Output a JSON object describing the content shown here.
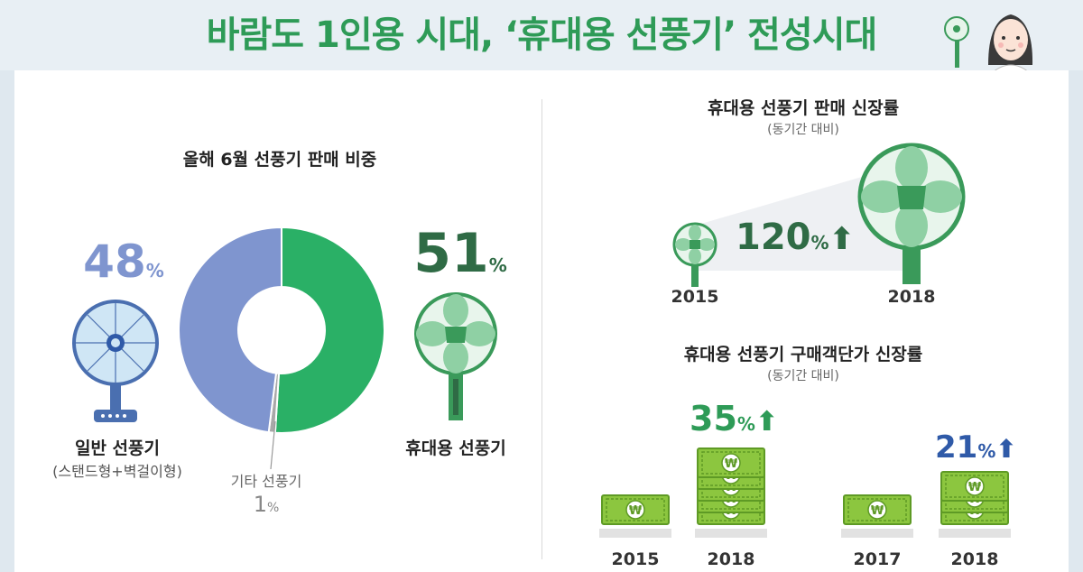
{
  "title": "바람도 1인용 시대, ‘휴대용 선풍기’ 전성시대",
  "colors": {
    "green": "#2ab066",
    "dark_green": "#2f6b45",
    "blue_gray": "#7f95cf",
    "gray": "#a8a8a8",
    "blue_pct": "#2f5aa8",
    "money_green": "#8cc63f"
  },
  "left_panel": {
    "title": "올해 6월 선풍기 판매 비중",
    "general": {
      "pct": "48",
      "unit": "%",
      "label": "일반 선풍기",
      "sublabel": "(스탠드형+벽걸이형)"
    },
    "portable": {
      "pct": "51",
      "unit": "%",
      "label": "휴대용 선풍기"
    },
    "other": {
      "label": "기타 선풍기",
      "pct": "1",
      "unit": "%"
    }
  },
  "growth_panel": {
    "title": "휴대용 선풍기 판매 신장률",
    "subtitle": "(동기간 대비)",
    "growth_pct": "120",
    "unit": "%",
    "year_from": "2015",
    "year_to": "2018"
  },
  "price_panel": {
    "title": "휴대용 선풍기 구매객단가 신장률",
    "subtitle": "(동기간 대비)",
    "left": {
      "pct": "35",
      "unit": "%",
      "year_from": "2015",
      "year_to": "2018"
    },
    "right": {
      "pct": "21",
      "unit": "%",
      "year_from": "2017",
      "year_to": "2018"
    }
  },
  "chart_data": [
    {
      "type": "pie",
      "title": "올해 6월 선풍기 판매 비중",
      "categories": [
        "휴대용 선풍기",
        "기타 선풍기",
        "일반 선풍기"
      ],
      "values": [
        51,
        1,
        48
      ],
      "unit": "%",
      "colors": [
        "#2ab066",
        "#a8a8a8",
        "#7f95cf"
      ]
    },
    {
      "type": "bar",
      "title": "휴대용 선풍기 판매 신장률",
      "subtitle": "(동기간 대비)",
      "categories": [
        "2015",
        "2018"
      ],
      "growth_pct": 120
    },
    {
      "type": "bar",
      "title": "휴대용 선풍기 구매객단가 신장률",
      "subtitle": "(동기간 대비)",
      "groups": [
        {
          "categories": [
            "2015",
            "2018"
          ],
          "growth_pct": 35
        },
        {
          "categories": [
            "2017",
            "2018"
          ],
          "growth_pct": 21
        }
      ]
    }
  ]
}
